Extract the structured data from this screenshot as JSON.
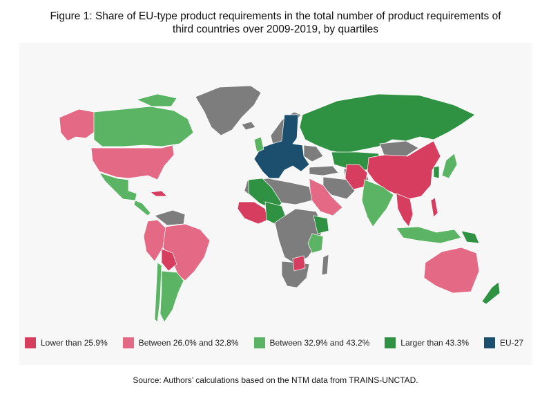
{
  "title": {
    "line1": "Figure 1: Share of EU-type product requirements in the total number of product requirements of",
    "line2": "third countries over 2009-2019, by quartiles"
  },
  "colors": {
    "lower": "#d63d5f",
    "between1": "#e36985",
    "between2": "#5bb463",
    "larger": "#2f9142",
    "eu27": "#1c4e6e",
    "no_data": "#7d7d7d",
    "background": "#f7f7f7"
  },
  "legend": [
    {
      "label": "Lower than 25.9%",
      "color": "#d63d5f"
    },
    {
      "label": "Between 26.0% and 32.8%",
      "color": "#e36985"
    },
    {
      "label": "Between 32.9% and 43.2%",
      "color": "#5bb463"
    },
    {
      "label": "Larger than 43.3%",
      "color": "#2f9142"
    },
    {
      "label": "EU-27",
      "color": "#1c4e6e"
    }
  ],
  "source": "Source: Authors’ calculations based on the NTM data from TRAINS-UNCTAD."
}
